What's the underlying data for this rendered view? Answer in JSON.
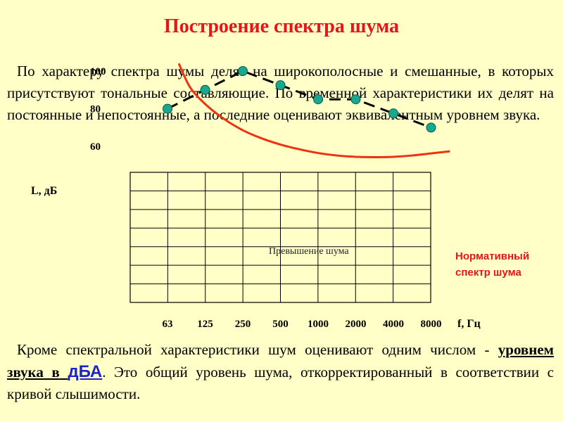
{
  "title": "Построение спектра шума",
  "para1": "По характеру спектра шумы делят на широкополосные и смешанные, в которых присутствуют тональные составляющие. По временной характеристики их делят на постоянные и непостоянные, а последние оценивают эквивалентным уровнем звука.",
  "para2": {
    "text_a": "Кроме спектральной характеристики шум оценивают одним числом - ",
    "underlined": "уровнем звука в",
    "space": " ",
    "unit": "дБА",
    "text_b": ". Это общий уровень шума, откорректированный в соответствии с кривой слышимости."
  },
  "chart_data": {
    "type": "line",
    "ylabel": "L, дБ",
    "xlabel": "f, Гц",
    "y_ticks": [
      "100",
      "80",
      "60"
    ],
    "y_tick_values": [
      100,
      80,
      60
    ],
    "x_ticks": [
      "63",
      "125",
      "250",
      "500",
      "1000",
      "2000",
      "4000",
      "8000"
    ],
    "ylim": [
      44,
      105
    ],
    "grid": true,
    "series": [
      {
        "values": [
          80,
          90,
          100,
          92.5,
          85,
          85,
          77.5,
          70
        ],
        "color": "#19a88d",
        "style": "dashed-markers"
      }
    ],
    "reference_curve": {
      "name": "Нормативный спектр шума",
      "color": "#f0300f",
      "x_pos": [
        0.3,
        0.6,
        1,
        1.5,
        2,
        2.5,
        3,
        3.5,
        4,
        4.5,
        5,
        5.5,
        6,
        6.5,
        7,
        7.5
      ],
      "values": [
        104,
        91.4,
        82.5,
        74.6,
        68.6,
        64.3,
        61,
        58.5,
        56.5,
        55.2,
        54.5,
        54.3,
        54.5,
        55.2,
        56.3,
        57.4
      ]
    },
    "annotation": "Превышение шума",
    "legend": "Нормативный спектр шума"
  }
}
